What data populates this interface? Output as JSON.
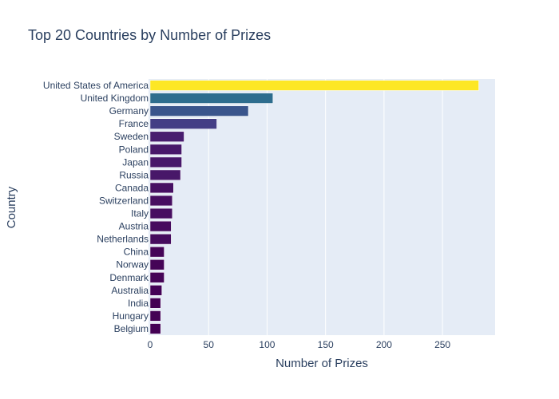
{
  "chart_data": {
    "type": "bar",
    "orientation": "horizontal",
    "title": "Top 20 Countries by Number of Prizes",
    "xlabel": "Number of Prizes",
    "ylabel": "Country",
    "xlim": [
      0,
      295
    ],
    "xticks": [
      0,
      50,
      100,
      150,
      200,
      250
    ],
    "grid": true,
    "legend": "none",
    "colorscale": "Viridis",
    "categories": [
      "United States of America",
      "United Kingdom",
      "Germany",
      "France",
      "Sweden",
      "Poland",
      "Japan",
      "Russia",
      "Canada",
      "Switzerland",
      "Italy",
      "Austria",
      "Netherlands",
      "China",
      "Norway",
      "Denmark",
      "Australia",
      "India",
      "Hungary",
      "Belgium"
    ],
    "values": [
      281,
      105,
      84,
      57,
      29,
      27,
      27,
      26,
      20,
      19,
      19,
      18,
      18,
      12,
      12,
      12,
      10,
      9,
      9,
      9
    ],
    "colors": [
      "#fde725",
      "#2e6d8e",
      "#3a558c",
      "#433e85",
      "#481d6f",
      "#48186a",
      "#48186a",
      "#481769",
      "#471063",
      "#470e61",
      "#470e61",
      "#460b5e",
      "#460b5e",
      "#450457",
      "#450457",
      "#450457",
      "#440256",
      "#440154",
      "#440154",
      "#440154"
    ],
    "plot_background": "#e5ecf6",
    "grid_color": "#ffffff",
    "text_color": "#2a3f5f"
  }
}
